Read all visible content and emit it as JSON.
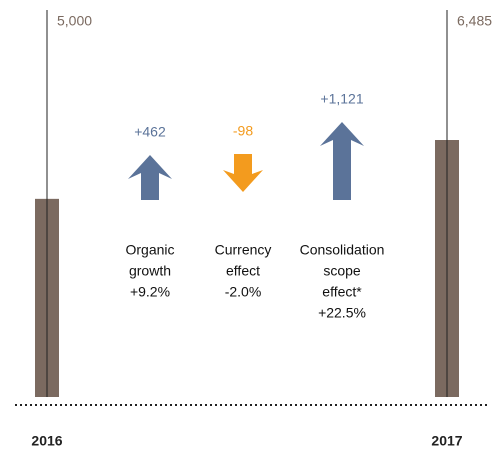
{
  "chart_data": {
    "type": "bridge",
    "categories": [
      "2016",
      "2017"
    ],
    "values": [
      5000,
      6485
    ],
    "value_labels": [
      "5,000",
      "6,485"
    ],
    "color": "#7b6a60",
    "changes": {
      "names": [
        [
          "Organic",
          "growth"
        ],
        [
          "Currency",
          "effect"
        ],
        [
          "Consolidation",
          "scope",
          "effect*"
        ]
      ],
      "values": [
        462,
        -98,
        1121
      ],
      "value_labels": [
        "+462",
        "-98",
        "+1,121"
      ],
      "percent_values": [
        9.2,
        -2.0,
        22.5
      ],
      "percent_labels": [
        "+9.2%",
        "-2.0%",
        "+22.5%"
      ],
      "up_color": "#5b7399",
      "down_color": "#f39b1e"
    }
  }
}
